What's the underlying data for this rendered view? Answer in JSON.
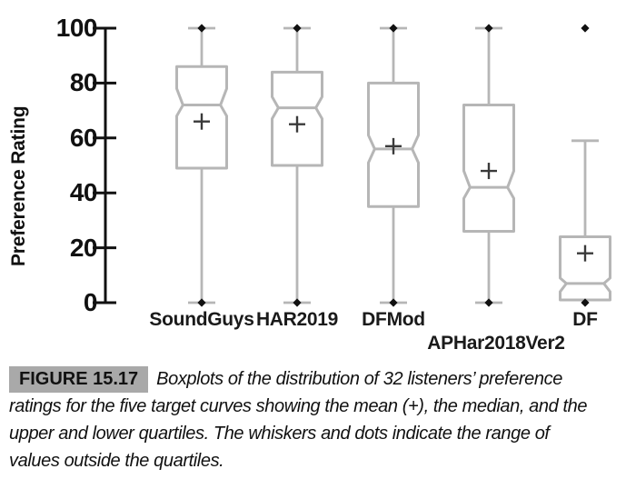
{
  "chart_data": {
    "type": "boxplot",
    "notched": true,
    "ylabel": "Preference Rating",
    "ylim": [
      0,
      100
    ],
    "yticks": [
      0,
      20,
      40,
      60,
      80,
      100
    ],
    "grid": false,
    "legend": "none",
    "categories": [
      "SoundGuys",
      "HAR2019",
      "DFMod",
      "APHar2018Ver2",
      "DF"
    ],
    "series": [
      {
        "name": "SoundGuys",
        "whisker_low": 0,
        "q1": 49,
        "median": 72,
        "q3": 86,
        "whisker_high": 100,
        "notch_low": 68,
        "notch_high": 78,
        "mean": 66,
        "dots": [
          100,
          0
        ]
      },
      {
        "name": "HAR2019",
        "whisker_low": 0,
        "q1": 50,
        "median": 71,
        "q3": 84,
        "whisker_high": 100,
        "notch_low": 67,
        "notch_high": 75,
        "mean": 65,
        "dots": [
          100,
          0
        ]
      },
      {
        "name": "DFMod",
        "whisker_low": 0,
        "q1": 35,
        "median": 56,
        "q3": 80,
        "whisker_high": 100,
        "notch_low": 51,
        "notch_high": 61,
        "mean": 57,
        "dots": [
          100,
          0
        ]
      },
      {
        "name": "APHar2018Ver2",
        "whisker_low": 0,
        "q1": 26,
        "median": 42,
        "q3": 72,
        "whisker_high": 100,
        "notch_low": 38,
        "notch_high": 48,
        "mean": 48,
        "dots": [
          100,
          0
        ]
      },
      {
        "name": "DF",
        "whisker_low": 1,
        "q1": 1,
        "median": 7,
        "q3": 24,
        "whisker_high": 59,
        "notch_low": 4,
        "notch_high": 9,
        "mean": 18,
        "dots": [
          100,
          0
        ]
      }
    ]
  },
  "caption": {
    "figure_label": "FIGURE 15.17",
    "text": "Boxplots of the distribution of 32 listeners’ preference ratings for the five target curves showing the mean (+), the median, and the upper and lower quartiles. The whiskers and dots indicate the range of values outside the quartiles."
  },
  "colors": {
    "box_stroke": "#b6b6b6",
    "axis": "#111111",
    "marker": "#111111",
    "mean_marker": "#3a3a3a",
    "caption_label_bg": "#a9a9a9"
  }
}
